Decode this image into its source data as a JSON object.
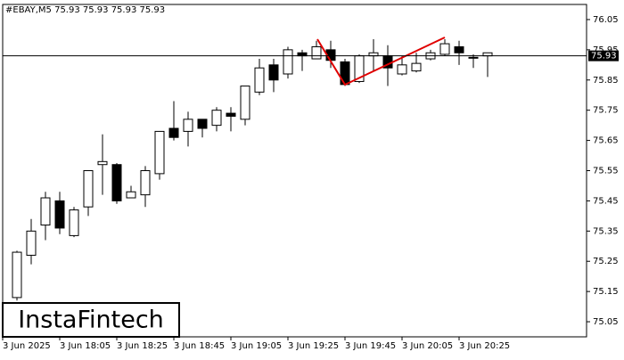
{
  "chart_data": {
    "type": "candlestick",
    "title": "#EBAY,M5  75.93 75.93 75.93 75.93",
    "brand": "InstaFintech",
    "categories": [
      "3 Jun 2025",
      null,
      null,
      null,
      "3 Jun 18:05",
      null,
      null,
      null,
      "3 Jun 18:25",
      null,
      null,
      null,
      "3 Jun 18:45",
      null,
      null,
      null,
      "3 Jun 19:05",
      null,
      null,
      null,
      "3 Jun 19:25",
      null,
      null,
      null,
      "3 Jun 19:45",
      null,
      null,
      null,
      "3 Jun 20:05",
      null,
      null,
      null,
      "3 Jun 20:25",
      null,
      null
    ],
    "open": [
      null,
      75.13,
      75.27,
      75.37,
      75.45,
      75.335,
      75.43,
      75.57,
      75.57,
      75.46,
      75.47,
      75.54,
      75.69,
      75.68,
      75.72,
      75.7,
      75.74,
      75.72,
      75.81,
      75.9,
      75.87,
      75.94,
      75.92,
      75.95,
      75.91,
      75.845,
      75.93,
      75.93,
      75.87,
      75.88,
      75.92,
      75.935,
      75.96,
      75.925,
      75.93
    ],
    "high": [
      null,
      75.285,
      75.39,
      75.48,
      75.48,
      75.43,
      75.55,
      75.67,
      75.575,
      75.5,
      75.565,
      75.68,
      75.78,
      75.745,
      75.72,
      75.76,
      75.76,
      75.83,
      75.92,
      75.92,
      75.96,
      75.95,
      75.98,
      75.98,
      75.92,
      75.935,
      75.985,
      75.965,
      75.93,
      75.94,
      75.95,
      75.985,
      75.98,
      75.935,
      75.94
    ],
    "low": [
      null,
      75.12,
      75.24,
      75.32,
      75.34,
      75.33,
      75.4,
      75.47,
      75.44,
      75.46,
      75.43,
      75.52,
      75.65,
      75.63,
      75.66,
      75.68,
      75.68,
      75.7,
      75.8,
      75.81,
      75.855,
      75.88,
      75.92,
      75.89,
      75.83,
      75.84,
      75.88,
      75.83,
      75.865,
      75.875,
      75.915,
      75.93,
      75.9,
      75.89,
      75.86
    ],
    "close": [
      null,
      75.28,
      75.35,
      75.46,
      75.36,
      75.42,
      75.55,
      75.58,
      75.45,
      75.48,
      75.55,
      75.68,
      75.66,
      75.72,
      75.69,
      75.75,
      75.73,
      75.83,
      75.89,
      75.85,
      75.95,
      75.93,
      75.96,
      75.915,
      75.835,
      75.93,
      75.94,
      75.89,
      75.9,
      75.905,
      75.94,
      75.97,
      75.94,
      75.925,
      75.94
    ],
    "current_price": 75.93,
    "ylim": [
      75.0,
      76.1
    ],
    "yticks": [
      75.05,
      75.15,
      75.25,
      75.35,
      75.45,
      75.55,
      75.65,
      75.75,
      75.85,
      75.95,
      76.05
    ]
  }
}
